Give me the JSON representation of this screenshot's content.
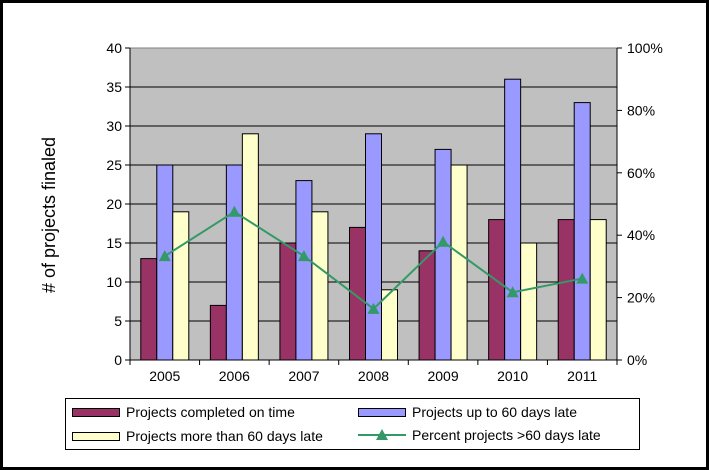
{
  "chart_data": {
    "type": "bar",
    "categories": [
      "2005",
      "2006",
      "2007",
      "2008",
      "2009",
      "2010",
      "2011"
    ],
    "ylabel": "# of projects finaled",
    "ylim": [
      0,
      40
    ],
    "yticks": [
      "0",
      "5",
      "10",
      "15",
      "20",
      "25",
      "30",
      "35",
      "40"
    ],
    "y2lim": [
      0,
      1
    ],
    "y2ticks": [
      "0%",
      "20%",
      "40%",
      "60%",
      "80%",
      "100%"
    ],
    "grid": true,
    "legend_position": "bottom",
    "series": [
      {
        "name": "Projects completed on time",
        "type": "bar",
        "color": "#993366",
        "values": [
          13,
          7,
          15,
          17,
          14,
          18,
          18
        ]
      },
      {
        "name": "Projects up to 60 days late",
        "type": "bar",
        "color": "#9999FF",
        "values": [
          25,
          25,
          23,
          29,
          27,
          36,
          33
        ]
      },
      {
        "name": "Projects more than 60 days late",
        "type": "bar",
        "color": "#FFFFCC",
        "values": [
          19,
          29,
          19,
          9,
          25,
          15,
          18
        ]
      },
      {
        "name": "Percent projects >60 days late",
        "type": "line",
        "axis": "secondary",
        "color": "#339966",
        "values": [
          0.333,
          0.475,
          0.333,
          0.164,
          0.379,
          0.217,
          0.261
        ]
      }
    ],
    "plot_background": "#C0C0C0"
  }
}
